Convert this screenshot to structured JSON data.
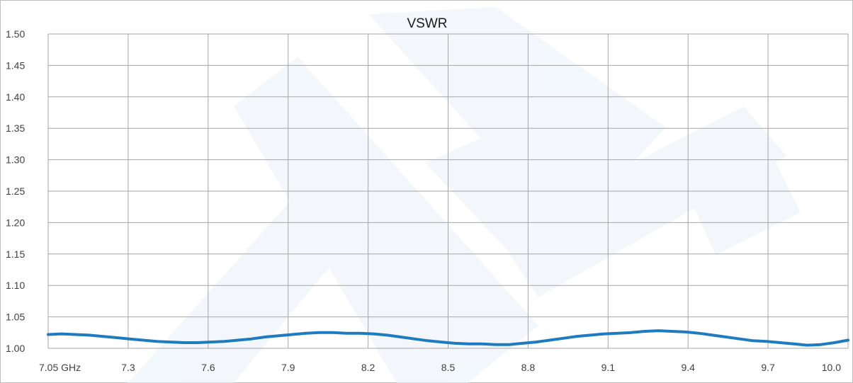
{
  "chart_data": {
    "type": "line",
    "title": "VSWR",
    "xlabel": "",
    "ylabel": "",
    "x_tick_labels": [
      "7.05 GHz",
      "7.3",
      "7.6",
      "7.9",
      "8.2",
      "8.5",
      "8.8",
      "9.1",
      "9.4",
      "9.7",
      "10.0"
    ],
    "y_tick_labels": [
      "1.00",
      "1.05",
      "1.10",
      "1.15",
      "1.20",
      "1.25",
      "1.30",
      "1.35",
      "1.40",
      "1.45",
      "1.50"
    ],
    "xlim": [
      7.05,
      10.0
    ],
    "ylim": [
      1.0,
      1.5
    ],
    "grid": true,
    "legend": "none",
    "series": [
      {
        "color": "#1f7bbf",
        "x": [
          7.05,
          7.1,
          7.15,
          7.2,
          7.25,
          7.3,
          7.35,
          7.4,
          7.45,
          7.5,
          7.55,
          7.6,
          7.65,
          7.7,
          7.75,
          7.8,
          7.85,
          7.9,
          7.95,
          8.0,
          8.05,
          8.1,
          8.15,
          8.2,
          8.25,
          8.3,
          8.35,
          8.4,
          8.45,
          8.5,
          8.55,
          8.6,
          8.65,
          8.7,
          8.75,
          8.8,
          8.85,
          8.9,
          8.95,
          9.0,
          9.05,
          9.1,
          9.15,
          9.2,
          9.25,
          9.3,
          9.35,
          9.4,
          9.45,
          9.5,
          9.55,
          9.6,
          9.65,
          9.7,
          9.75,
          9.8,
          9.85,
          9.9,
          9.95,
          10.0
        ],
        "values": [
          1.022,
          1.023,
          1.022,
          1.021,
          1.019,
          1.017,
          1.015,
          1.013,
          1.011,
          1.01,
          1.009,
          1.009,
          1.01,
          1.011,
          1.013,
          1.015,
          1.018,
          1.02,
          1.022,
          1.024,
          1.025,
          1.025,
          1.024,
          1.024,
          1.023,
          1.021,
          1.018,
          1.015,
          1.012,
          1.01,
          1.008,
          1.007,
          1.007,
          1.006,
          1.006,
          1.008,
          1.01,
          1.013,
          1.016,
          1.019,
          1.021,
          1.023,
          1.024,
          1.025,
          1.027,
          1.028,
          1.027,
          1.026,
          1.024,
          1.021,
          1.018,
          1.015,
          1.012,
          1.011,
          1.009,
          1.007,
          1.005,
          1.006,
          1.009,
          1.013
        ]
      }
    ]
  }
}
